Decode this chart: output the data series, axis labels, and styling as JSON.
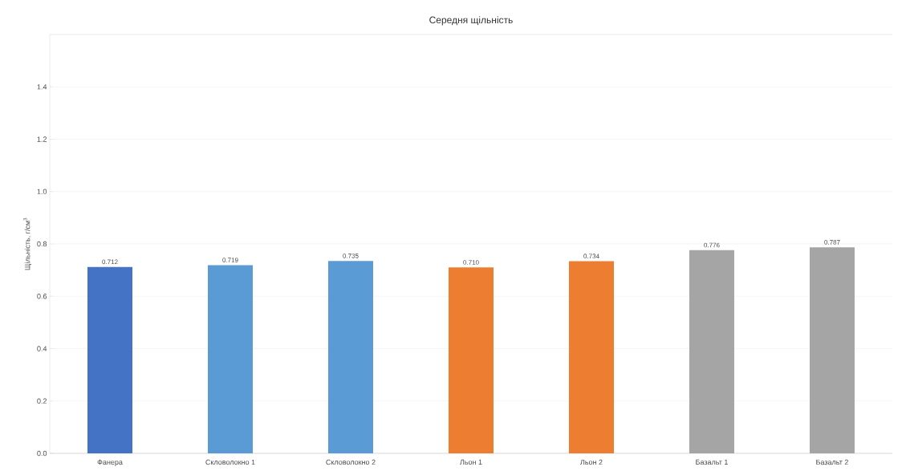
{
  "chart_data": {
    "type": "bar",
    "title": "Середня щільність",
    "ylabel": "Щільність, г/см$^{3}$",
    "categories": [
      "Фанера",
      "Скловолокно 1",
      "Скловолокно 2",
      "Льон 1",
      "Льон 2",
      "Базальт 1",
      "Базальт 2"
    ],
    "values": [
      0.712,
      0.719,
      0.735,
      0.71,
      0.734,
      0.776,
      0.787
    ],
    "colors": [
      "#4472c4",
      "#5b9bd5",
      "#5b9bd5",
      "#ed7d31",
      "#ed7d31",
      "#a5a5a5",
      "#a5a5a5"
    ],
    "value_labels": [
      "0.712",
      "0.719",
      "0.735",
      "0.710",
      "0.734",
      "0.776",
      "0.787"
    ],
    "ylim": [
      0,
      1.6
    ],
    "yticks": [
      {
        "value": 0,
        "label": "0.0"
      },
      0.2,
      0.4,
      0.6,
      0.8,
      {
        "value": 1,
        "label": "1.0"
      },
      1.2,
      1.4
    ],
    "grid": "y"
  }
}
